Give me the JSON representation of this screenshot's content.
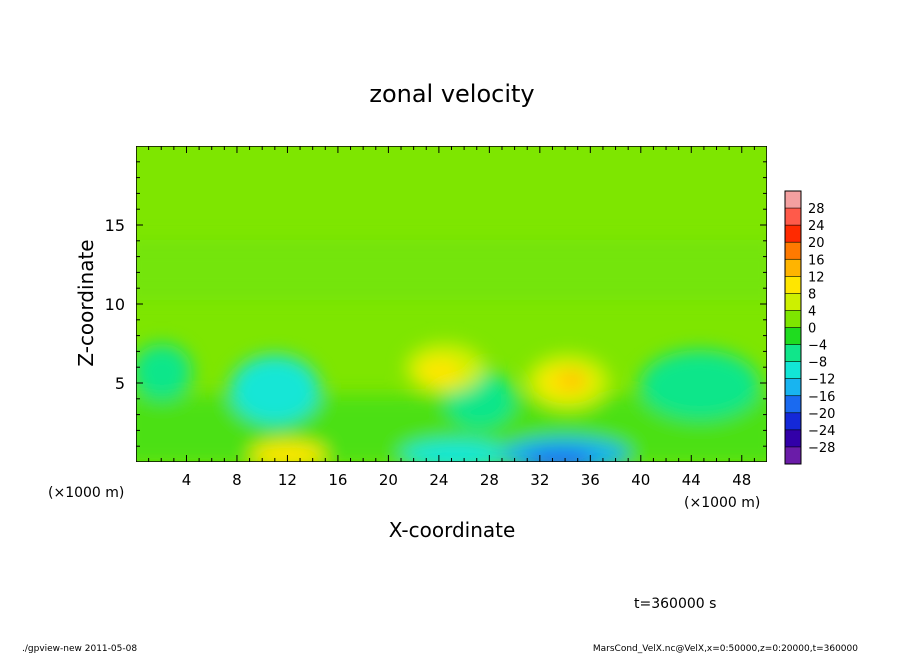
{
  "chart_data": {
    "type": "heatmap",
    "title": "zonal velocity",
    "xlabel": "X-coordinate",
    "ylabel": "Z-coordinate",
    "x_unit": "(×1000 m)",
    "x_unit_right": "(×1000 m)",
    "xlim": [
      0,
      50
    ],
    "ylim": [
      0,
      20
    ],
    "x_ticks": [
      "4",
      "8",
      "12",
      "16",
      "20",
      "24",
      "28",
      "32",
      "36",
      "40",
      "44",
      "48"
    ],
    "y_ticks": [
      "5",
      "10",
      "15"
    ],
    "colorbar": {
      "levels": [
        "28",
        "24",
        "20",
        "16",
        "12",
        "8",
        "4",
        "0",
        "−4",
        "−8",
        "−12",
        "−16",
        "−20",
        "−24",
        "−28"
      ],
      "colors": [
        "#f4a0a0",
        "#ff5a4a",
        "#ff2a00",
        "#ff7a00",
        "#ffb400",
        "#ffe600",
        "#cdf000",
        "#7ee600",
        "#1fdc1f",
        "#10e68a",
        "#12e6d6",
        "#18b4f0",
        "#1a6af0",
        "#1428d8",
        "#3200a8",
        "#6a1ca8"
      ]
    },
    "features": [
      {
        "name": "weak positive band",
        "x": 24,
        "z": 5.5,
        "value": 6
      },
      {
        "name": "positive max",
        "x": 34.5,
        "z": 5.2,
        "value": 11
      },
      {
        "name": "positive near surface",
        "x": 12,
        "z": 0.5,
        "value": 10
      },
      {
        "name": "negative near surface",
        "x": 33.5,
        "z": 0.3,
        "value": -18
      },
      {
        "name": "negative near surface",
        "x": 25,
        "z": 0.5,
        "value": -10
      },
      {
        "name": "negative lobe",
        "x": 10.5,
        "z": 4.5,
        "value": -9
      },
      {
        "name": "negative lobe",
        "x": 29,
        "z": 3.2,
        "value": -7
      }
    ]
  },
  "time_label": "t=360000 s",
  "footer_left": "./gpview-new   2011-05-08",
  "footer_right": "MarsCond_VelX.nc@VelX,x=0:50000,z=0:20000,t=360000"
}
